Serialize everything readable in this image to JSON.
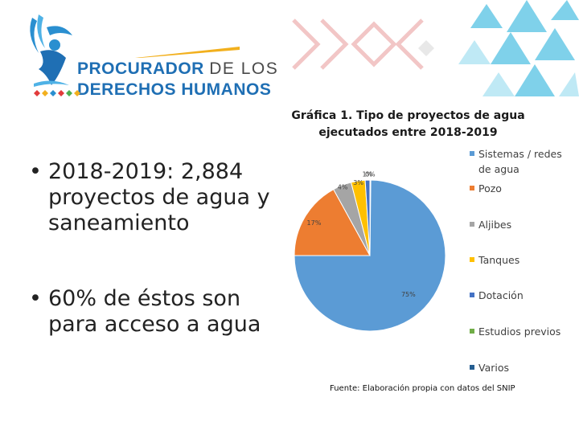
{
  "logo": {
    "line1_bold": "PROCURADOR",
    "line1_thin": "DE LOS",
    "line2": "DERECHOS HUMANOS"
  },
  "bullets": [
    {
      "dot": "•",
      "text": "2018-2019: 2,884 proyectos de agua y saneamiento"
    },
    {
      "dot": "•",
      "text": "60% de éstos son para acceso a agua"
    }
  ],
  "source": "Fuente: Elaboración propia con datos del SNIP",
  "chart_data": {
    "type": "pie",
    "title": "Gráfica 1. Tipo de proyectos de agua ejecutados entre 2018-2019",
    "legend_position": "right",
    "slices": [
      {
        "name": "Sistemas / redes de agua",
        "value": 75,
        "label": "75%",
        "color": "#5b9bd5"
      },
      {
        "name": "Pozo",
        "value": 17,
        "label": "17%",
        "color": "#ed7d31"
      },
      {
        "name": "Aljibes",
        "value": 4,
        "label": "4%",
        "color": "#a5a5a5"
      },
      {
        "name": "Tanques",
        "value": 3,
        "label": "3%",
        "color": "#ffc000"
      },
      {
        "name": "Dotación",
        "value": 1,
        "label": "1%",
        "color": "#4472c4"
      },
      {
        "name": "Estudios previos",
        "value": 0,
        "label": "0%",
        "color": "#70ad47"
      },
      {
        "name": "Varios",
        "value": 0,
        "label": "",
        "color": "#255e91"
      }
    ]
  }
}
